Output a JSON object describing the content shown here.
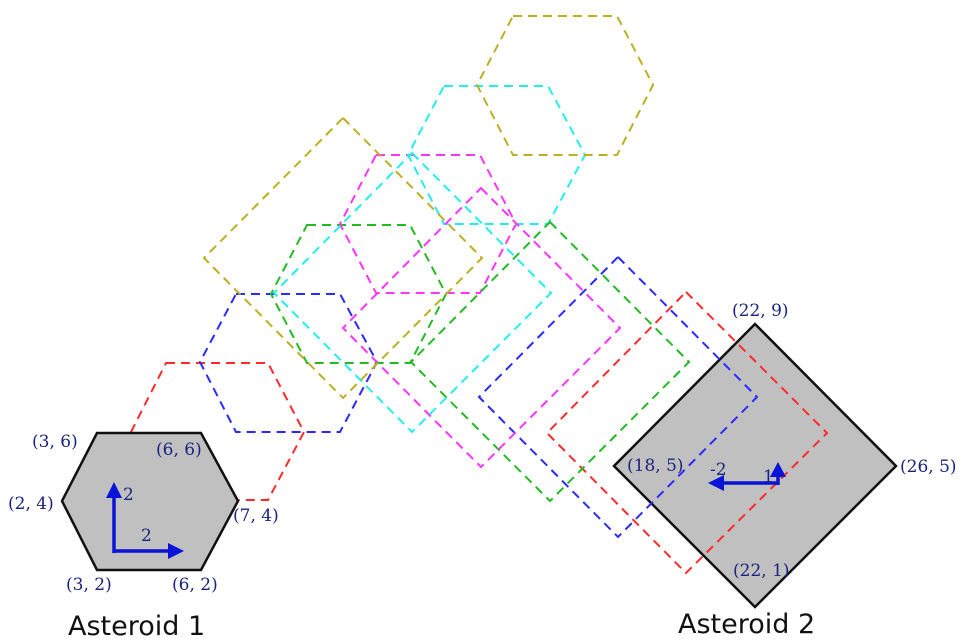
{
  "colors": {
    "asteroid_fill": "#c0c0c0",
    "asteroid_stroke": "#111111",
    "velocity_arrow": "#0a14d6",
    "label_text": "#1a237e",
    "trail_colors": [
      "#ff2a2a",
      "#2a2aff",
      "#22bb22",
      "#ff33ff",
      "#22eeee",
      "#bbb022"
    ]
  },
  "asteroid1": {
    "name": "Asteroid 1",
    "shape": "hexagon",
    "vertices": {
      "top_left": "(3, 6)",
      "top_right": "(6, 6)",
      "left": "(2, 4)",
      "right": "(7, 4)",
      "bottom_left": "(3, 2)",
      "bottom_right": "(6, 2)"
    },
    "velocity": {
      "x_label": "2",
      "y_label": "2"
    }
  },
  "asteroid2": {
    "name": "Asteroid 2",
    "shape": "diamond",
    "vertices": {
      "top": "(22, 9)",
      "left": "(18, 5)",
      "right": "(26, 5)",
      "bottom": "(22, 1)"
    },
    "velocity": {
      "x_label": "-2",
      "y_label": "1"
    }
  }
}
